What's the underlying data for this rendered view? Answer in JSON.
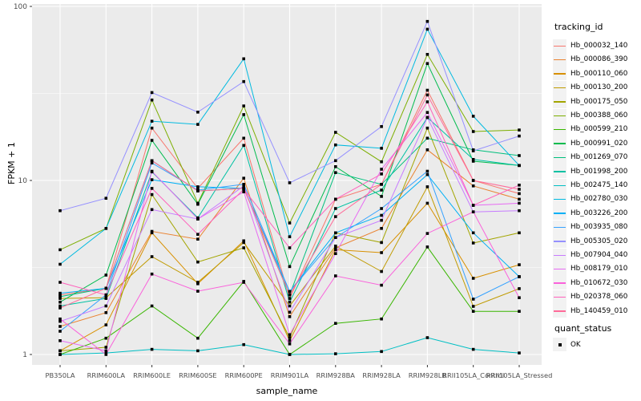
{
  "figure": {
    "y_axis": {
      "label": "FPKM + 1"
    },
    "x_axis": {
      "label": "sample_name"
    },
    "legend": {
      "tracking_title": "tracking_id",
      "quant_title": "quant_status",
      "quant_label": "OK"
    }
  },
  "chart_data": {
    "type": "line",
    "title": "",
    "xlabel": "sample_name",
    "ylabel": "FPKM + 1",
    "y_scale": "log10",
    "ylim": [
      0.87,
      103
    ],
    "y_ticks": [
      1,
      10,
      100
    ],
    "y_tick_labels": [
      "1",
      "10",
      "100"
    ],
    "y_minor_ticks": [
      3.162,
      31.62
    ],
    "grid": "on",
    "legend_position": "right",
    "marker": "black-square",
    "panel_background": "#EBEBEB",
    "gridline_color": "#FFFFFF",
    "tick_label_color": "#4D4D4D",
    "categories": [
      "PB350LA",
      "RRIM600LA",
      "RRIM600LE",
      "RRIM600SE",
      "RRIM600PE",
      "RRIM901LA",
      "RRIM928BA",
      "RRIM928LA",
      "RRIM928LB",
      "RRII105LA_Control",
      "RRII105LA_Stressed"
    ],
    "series": [
      {
        "name": "Hb_000032_140",
        "color": "#F8766D",
        "values": [
          2.2,
          2.4,
          20.0,
          9.0,
          17.5,
          2.1,
          7.8,
          9.5,
          33.0,
          10.0,
          8.4
        ]
      },
      {
        "name": "Hb_000086_390",
        "color": "#EA8331",
        "values": [
          1.45,
          1.74,
          5.1,
          4.6,
          10.3,
          1.65,
          4.1,
          5.3,
          15.0,
          9.3,
          7.8
        ]
      },
      {
        "name": "Hb_000110_060",
        "color": "#D89000",
        "values": [
          1.05,
          1.48,
          5.0,
          2.55,
          4.5,
          1.2,
          4.0,
          3.85,
          7.4,
          2.74,
          3.28
        ]
      },
      {
        "name": "Hb_000130_200",
        "color": "#C09B00",
        "values": [
          2.1,
          2.12,
          3.65,
          2.6,
          4.4,
          1.9,
          4.2,
          3.0,
          9.2,
          1.89,
          2.39
        ]
      },
      {
        "name": "Hb_000175_050",
        "color": "#A3A500",
        "values": [
          1.05,
          1.1,
          8.3,
          3.4,
          4.1,
          1.25,
          5.0,
          4.4,
          20.0,
          4.37,
          5.0
        ]
      },
      {
        "name": "Hb_000388_060",
        "color": "#7CAE00",
        "values": [
          4.0,
          5.3,
          29.0,
          7.4,
          26.8,
          5.7,
          18.9,
          12.8,
          53.0,
          19.1,
          19.5
        ]
      },
      {
        "name": "Hb_000599_210",
        "color": "#39B600",
        "values": [
          1.0,
          1.24,
          1.9,
          1.24,
          2.63,
          1.0,
          1.51,
          1.6,
          4.15,
          1.77,
          1.77
        ]
      },
      {
        "name": "Hb_000991_020",
        "color": "#00BB4E",
        "values": [
          2.0,
          2.86,
          17.0,
          7.3,
          23.9,
          3.2,
          12.0,
          8.1,
          47.0,
          12.9,
          12.2
        ]
      },
      {
        "name": "Hb_001269_070",
        "color": "#00BF7D",
        "values": [
          2.15,
          2.4,
          13.0,
          8.7,
          9.0,
          2.2,
          11.1,
          9.5,
          17.5,
          15.0,
          13.9
        ]
      },
      {
        "name": "Hb_001998_200",
        "color": "#00C1A3",
        "values": [
          1.9,
          2.1,
          11.2,
          6.1,
          15.9,
          2.0,
          6.9,
          8.8,
          23.0,
          13.2,
          12.2
        ]
      },
      {
        "name": "Hb_002475_140",
        "color": "#00BFC4",
        "values": [
          1.0,
          1.02,
          1.07,
          1.05,
          1.14,
          1.0,
          1.01,
          1.04,
          1.25,
          1.07,
          1.02
        ]
      },
      {
        "name": "Hb_002780_030",
        "color": "#00BAE0",
        "values": [
          3.3,
          5.3,
          21.9,
          21.0,
          50.0,
          4.75,
          16.0,
          15.3,
          74.0,
          23.4,
          12.2
        ]
      },
      {
        "name": "Hb_003226_200",
        "color": "#00B0F6",
        "values": [
          2.25,
          2.4,
          10.1,
          9.2,
          9.0,
          2.3,
          5.0,
          6.3,
          10.8,
          5.0,
          2.8
        ]
      },
      {
        "name": "Hb_003935_080",
        "color": "#35A2FF",
        "values": [
          1.36,
          2.2,
          12.6,
          8.8,
          9.5,
          2.3,
          4.7,
          6.9,
          11.3,
          2.08,
          2.8
        ]
      },
      {
        "name": "Hb_005305_020",
        "color": "#9590FF",
        "values": [
          6.7,
          7.9,
          32.0,
          24.7,
          37.0,
          9.7,
          13.0,
          20.4,
          82.0,
          14.8,
          18.0
        ]
      },
      {
        "name": "Hb_007904_040",
        "color": "#C77CFF",
        "values": [
          1.55,
          1.9,
          6.8,
          6.0,
          9.3,
          1.75,
          4.7,
          5.9,
          23.0,
          6.6,
          6.7
        ]
      },
      {
        "name": "Hb_008179_010",
        "color": "#E76BF3",
        "values": [
          1.2,
          1.05,
          11.3,
          6.0,
          8.6,
          1.3,
          3.8,
          11.6,
          24.6,
          7.2,
          7.4
        ]
      },
      {
        "name": "Hb_010672_030",
        "color": "#FA62DB",
        "values": [
          1.6,
          1.0,
          2.9,
          2.31,
          2.6,
          1.15,
          2.83,
          2.5,
          4.96,
          6.6,
          2.12
        ]
      },
      {
        "name": "Hb_020378_060",
        "color": "#FF62BC",
        "values": [
          2.6,
          2.2,
          9.0,
          4.9,
          8.9,
          4.1,
          7.8,
          10.9,
          28.3,
          7.2,
          9.4
        ]
      },
      {
        "name": "Hb_140459_010",
        "color": "#FF6A98",
        "values": [
          1.85,
          2.4,
          13.0,
          8.7,
          9.0,
          2.2,
          6.2,
          9.5,
          31.0,
          10.0,
          8.9
        ]
      }
    ]
  }
}
